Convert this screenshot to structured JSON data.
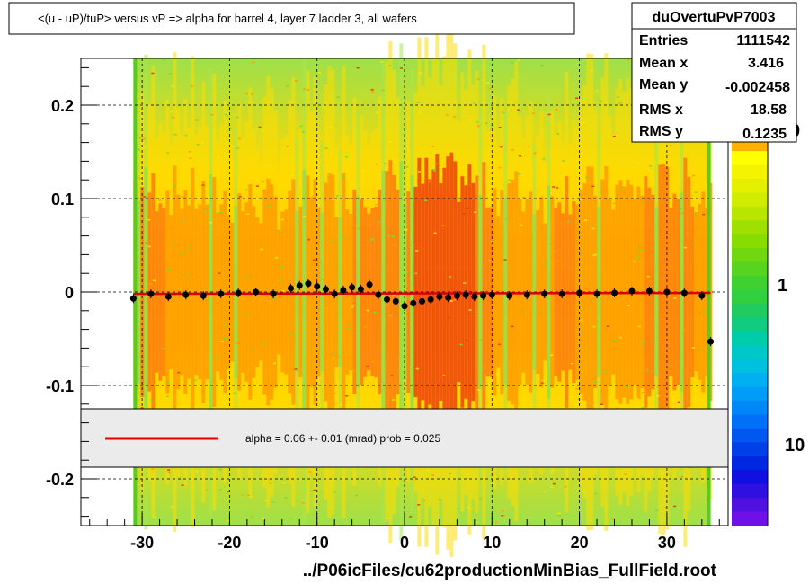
{
  "chart_data": {
    "type": "scatter",
    "title": "<(u - uP)/tuP> versus   vP => alpha for barrel 4, layer 7 ladder 3, all wafers",
    "xlabel": "../P06icFiles/cu62productionMinBias_FullField.root",
    "ylabel": "",
    "xlim": [
      -37,
      37
    ],
    "ylim": [
      -0.25,
      0.25
    ],
    "x_ticks": [
      -30,
      -20,
      -10,
      0,
      10,
      20,
      30
    ],
    "x_tick_labels": [
      "-30",
      "-20",
      "-10",
      "0",
      "10",
      "20",
      "30"
    ],
    "y_ticks": [
      -0.2,
      -0.1,
      0,
      0.1,
      0.2
    ],
    "y_tick_labels": [
      "-0.2",
      "-0.1",
      "0",
      "0.1",
      "0.2"
    ],
    "grid": true,
    "series": [
      {
        "kind": "profile-points",
        "x": [
          -31,
          -29,
          -27,
          -25,
          -23,
          -21,
          -19,
          -17,
          -15,
          -13,
          -12,
          -11,
          -10,
          -9,
          -8,
          -7,
          -6,
          -5,
          -4,
          -3,
          -2,
          -1,
          0,
          1,
          2,
          3,
          4,
          5,
          6,
          7,
          8,
          9,
          10,
          12,
          14,
          16,
          18,
          20,
          22,
          24,
          26,
          28,
          30,
          32,
          34,
          35
        ],
        "y": [
          -0.007,
          -0.002,
          -0.005,
          -0.003,
          -0.004,
          -0.002,
          -0.001,
          0,
          -0.002,
          0.004,
          0.007,
          0.009,
          0.006,
          0.003,
          -0.002,
          0.002,
          0.005,
          0.003,
          0.008,
          -0.003,
          -0.008,
          -0.01,
          -0.015,
          -0.012,
          -0.01,
          -0.008,
          -0.005,
          -0.006,
          -0.004,
          -0.003,
          -0.005,
          -0.004,
          -0.003,
          -0.004,
          -0.003,
          -0.002,
          -0.002,
          -0.001,
          -0.002,
          -0.001,
          0.001,
          0.001,
          0.0,
          -0.001,
          -0.004,
          -0.053
        ]
      },
      {
        "kind": "fit-line",
        "x": [
          -31,
          35
        ],
        "y": [
          -0.002,
          -0.001
        ],
        "color": "#dd0000"
      }
    ],
    "stats": {
      "name": "duOvertuPvP7003",
      "rows": [
        {
          "label": "Entries",
          "value": "1111542"
        },
        {
          "label": "Mean x",
          "value": "3.416"
        },
        {
          "label": "Mean y",
          "value": "-0.002458"
        },
        {
          "label": "RMS x",
          "value": "18.58"
        },
        {
          "label": "RMS y",
          "value": "0.1235"
        }
      ]
    },
    "legend": {
      "text": "alpha =    0.06 +-  0.01 (mrad) prob = 0.025",
      "line_color": "#dd0000"
    },
    "palette": {
      "labels": [
        "1",
        "10"
      ],
      "partial_label": "0"
    },
    "colors": {
      "heat_high": "#f04010",
      "heat_mid": "#ff9a00",
      "heat_low": "#ffff00",
      "heat_edge": "#66dd22",
      "points": "#000000"
    }
  }
}
